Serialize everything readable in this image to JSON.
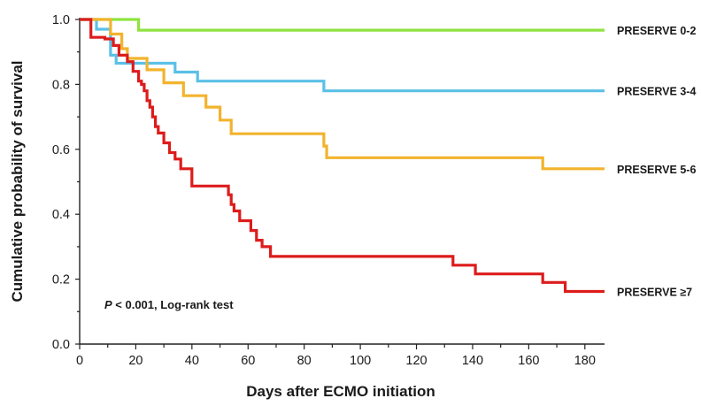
{
  "chart_data": {
    "type": "line",
    "subtype": "kaplan-meier step",
    "title": "",
    "xlabel": "Days after ECMO initiation",
    "ylabel": "Cumulative probability of survival",
    "xlim": [
      0,
      187
    ],
    "ylim": [
      0,
      1.0
    ],
    "x_ticks": [
      0,
      20,
      40,
      60,
      80,
      100,
      120,
      140,
      160,
      180
    ],
    "x_tick_labels": [
      "0",
      "20",
      "40",
      "60",
      "80",
      "100",
      "120",
      "140",
      "160",
      "180"
    ],
    "y_ticks": [
      0.0,
      0.2,
      0.4,
      0.6,
      0.8,
      1.0
    ],
    "y_tick_labels": [
      "0.0",
      "0.2",
      "0.4",
      "0.6",
      "0.8",
      "1.0"
    ],
    "grid": false,
    "legend": "labels at right end of each curve",
    "annotation": {
      "p_symbol": "P",
      "text": " < 0.001, Log-rank test"
    },
    "series": [
      {
        "name": "PRESERVE 0-2",
        "color": "#8fe340",
        "x": [
          0,
          21,
          187
        ],
        "y": [
          1.0,
          0.967,
          0.967
        ]
      },
      {
        "name": "PRESERVE 3-4",
        "color": "#5bc0e6",
        "x": [
          0,
          6,
          11,
          13,
          34,
          42,
          87,
          187
        ],
        "y": [
          1.0,
          0.97,
          0.89,
          0.865,
          0.838,
          0.81,
          0.78,
          0.78
        ]
      },
      {
        "name": "PRESERVE 5-6",
        "color": "#f2b32d",
        "x": [
          0,
          11,
          15,
          17,
          24,
          30,
          37,
          45,
          50,
          54,
          87,
          88,
          165,
          187
        ],
        "y": [
          1.0,
          0.955,
          0.91,
          0.88,
          0.845,
          0.805,
          0.765,
          0.73,
          0.69,
          0.648,
          0.61,
          0.574,
          0.54,
          0.54
        ],
        "labels_y": 0.54
      },
      {
        "name": "PRESERVE ≥7",
        "color": "#dd1c1c",
        "x": [
          0,
          4,
          9,
          12,
          14,
          17,
          19,
          21,
          22,
          23,
          24,
          25,
          26,
          27,
          28,
          30,
          32,
          34,
          36,
          40,
          53,
          54,
          55,
          57,
          61,
          63,
          65,
          68,
          133,
          141,
          165,
          173,
          187
        ],
        "y": [
          1.0,
          0.945,
          0.94,
          0.92,
          0.89,
          0.87,
          0.84,
          0.81,
          0.8,
          0.78,
          0.75,
          0.73,
          0.7,
          0.67,
          0.65,
          0.62,
          0.59,
          0.57,
          0.54,
          0.487,
          0.46,
          0.43,
          0.41,
          0.38,
          0.35,
          0.32,
          0.3,
          0.27,
          0.243,
          0.216,
          0.19,
          0.162,
          0.162
        ]
      }
    ]
  }
}
